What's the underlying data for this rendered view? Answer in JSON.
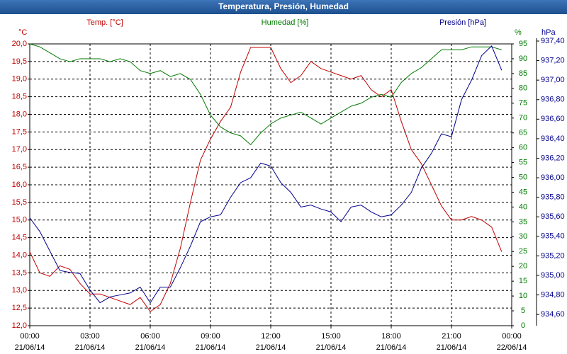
{
  "chart_data": {
    "type": "line",
    "title": "Temperatura, Presión, Humedad",
    "ylabel": "°C",
    "y2label": "%",
    "y3label": "hPa",
    "x": [
      0,
      0.5,
      1,
      1.5,
      2,
      2.5,
      3,
      3.5,
      4,
      4.5,
      5,
      5.5,
      6,
      6.5,
      7,
      7.5,
      8,
      8.5,
      9,
      9.5,
      10,
      10.5,
      11,
      11.5,
      12,
      12.5,
      13,
      13.5,
      14,
      14.5,
      15,
      15.5,
      16,
      16.5,
      17,
      17.5,
      18,
      18.5,
      19,
      19.5,
      20,
      20.5,
      21,
      21.5,
      22,
      22.5,
      23,
      23.5
    ],
    "series": [
      {
        "name": "Temp. [°C]",
        "color": "#c00000",
        "axis": "y",
        "values": [
          14.1,
          13.5,
          13.4,
          13.7,
          13.6,
          13.2,
          12.9,
          12.9,
          12.8,
          12.7,
          12.6,
          12.8,
          12.4,
          12.6,
          13.2,
          14.2,
          15.5,
          16.7,
          17.3,
          17.8,
          18.2,
          19.2,
          19.9,
          19.9,
          19.9,
          19.3,
          18.9,
          19.1,
          19.5,
          19.3,
          19.2,
          19.1,
          19.0,
          19.1,
          18.7,
          18.5,
          18.7,
          17.8,
          17.0,
          16.6,
          16.0,
          15.4,
          15.0,
          15.0,
          15.1,
          15.0,
          14.8,
          14.1
        ]
      },
      {
        "name": "Humedad [%]",
        "color": "#007a00",
        "axis": "y2",
        "values": [
          95,
          94,
          92,
          90,
          89,
          90,
          90,
          90,
          89,
          90,
          89,
          86,
          85,
          86,
          84,
          85,
          83,
          78,
          71,
          67,
          65,
          64,
          61,
          65,
          68,
          70,
          71,
          72,
          70,
          68,
          70,
          72,
          74,
          75,
          77,
          78,
          77,
          82,
          85,
          87,
          90,
          93,
          93,
          93,
          94,
          94,
          94,
          93
        ]
      },
      {
        "name": "Presión [hPa]",
        "color": "#00008b",
        "axis": "y3",
        "values": [
          935.59,
          935.45,
          935.25,
          935.05,
          935.03,
          935.02,
          934.85,
          934.72,
          934.78,
          934.8,
          934.82,
          934.88,
          934.72,
          934.88,
          934.88,
          935.08,
          935.3,
          935.55,
          935.6,
          935.62,
          935.8,
          935.95,
          936.0,
          936.15,
          936.12,
          935.95,
          935.85,
          935.7,
          935.72,
          935.68,
          935.65,
          935.55,
          935.7,
          935.72,
          935.65,
          935.6,
          935.62,
          935.72,
          935.85,
          936.1,
          936.25,
          936.45,
          936.42,
          936.8,
          937.0,
          937.25,
          937.35,
          937.1
        ]
      }
    ],
    "xlim": [
      0,
      24
    ],
    "xticks": [
      {
        "value": 0,
        "label": "00:00",
        "date": "21/06/14"
      },
      {
        "value": 3,
        "label": "03:00",
        "date": "21/06/14"
      },
      {
        "value": 6,
        "label": "06:00",
        "date": "21/06/14"
      },
      {
        "value": 9,
        "label": "09:00",
        "date": "21/06/14"
      },
      {
        "value": 12,
        "label": "12:00",
        "date": "21/06/14"
      },
      {
        "value": 15,
        "label": "15:00",
        "date": "21/06/14"
      },
      {
        "value": 18,
        "label": "18:00",
        "date": "21/06/14"
      },
      {
        "value": 21,
        "label": "21:00",
        "date": "21/06/14"
      },
      {
        "value": 24,
        "label": "00:00",
        "date": "22/06/14"
      }
    ],
    "ylim": [
      12,
      20
    ],
    "yticks": [
      {
        "value": 12,
        "label": "12,0"
      },
      {
        "value": 12.5,
        "label": "12,5"
      },
      {
        "value": 13,
        "label": "13,0"
      },
      {
        "value": 13.5,
        "label": "13,5"
      },
      {
        "value": 14,
        "label": "14,0"
      },
      {
        "value": 14.5,
        "label": "14,5"
      },
      {
        "value": 15,
        "label": "15,0"
      },
      {
        "value": 15.5,
        "label": "15,5"
      },
      {
        "value": 16,
        "label": "16,0"
      },
      {
        "value": 16.5,
        "label": "16,5"
      },
      {
        "value": 17,
        "label": "17,0"
      },
      {
        "value": 17.5,
        "label": "17,5"
      },
      {
        "value": 18,
        "label": "18,0"
      },
      {
        "value": 18.5,
        "label": "18,5"
      },
      {
        "value": 19,
        "label": "19,0"
      },
      {
        "value": 19.5,
        "label": "19,5"
      },
      {
        "value": 20,
        "label": "20,0"
      }
    ],
    "y2lim": [
      0,
      95
    ],
    "y2ticks": [
      0,
      5,
      10,
      15,
      20,
      25,
      30,
      35,
      40,
      45,
      50,
      55,
      60,
      65,
      70,
      75,
      80,
      85,
      90,
      95
    ],
    "y3lim": [
      934.485,
      937.371
    ],
    "y3ticks": [
      {
        "value": 934.6,
        "label": "934,60"
      },
      {
        "value": 934.8,
        "label": "934,80"
      },
      {
        "value": 935,
        "label": "935,00"
      },
      {
        "value": 935.2,
        "label": "935,20"
      },
      {
        "value": 935.4,
        "label": "935,40"
      },
      {
        "value": 935.6,
        "label": "935,60"
      },
      {
        "value": 935.8,
        "label": "935,80"
      },
      {
        "value": 936,
        "label": "936,00"
      },
      {
        "value": 936.2,
        "label": "936,20"
      },
      {
        "value": 936.4,
        "label": "936,40"
      },
      {
        "value": 936.6,
        "label": "936,60"
      },
      {
        "value": 936.8,
        "label": "936,80"
      },
      {
        "value": 937,
        "label": "937,00"
      },
      {
        "value": 937.2,
        "label": "937,20"
      },
      {
        "value": 937.4,
        "label": "937,40"
      }
    ],
    "grid": true
  }
}
